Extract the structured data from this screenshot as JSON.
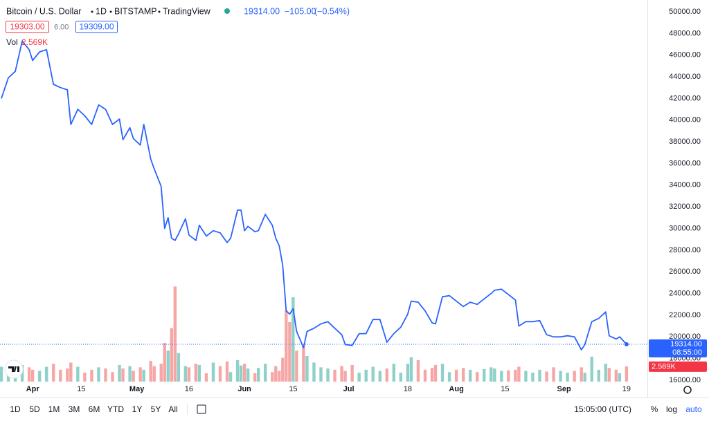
{
  "chart_data": {
    "type": "line",
    "header": {
      "title": "Bitcoin / U.S. Dollar",
      "interval": "1D",
      "exchange": "BITSTAMP",
      "source": "TradingView",
      "last": "19314.00",
      "change": "−105.00",
      "change_pct": "(−0.54%)",
      "bid": "19303.00",
      "spread": "6.00",
      "ask": "19309.00",
      "volume_label": "Vol",
      "volume_last": "2.569K"
    },
    "price_label": {
      "value": "19314.00",
      "countdown": "08:55:00"
    },
    "x": [
      "03-23",
      "03-25",
      "03-27",
      "03-29",
      "03-31",
      "04-01",
      "04-03",
      "04-05",
      "04-07",
      "04-09",
      "04-11",
      "04-12",
      "04-14",
      "04-16",
      "04-18",
      "04-20",
      "04-22",
      "04-24",
      "04-26",
      "04-27",
      "04-29",
      "04-30",
      "05-02",
      "05-03",
      "05-05",
      "05-06",
      "05-08",
      "05-09",
      "05-10",
      "05-11",
      "05-12",
      "05-13",
      "05-15",
      "05-16",
      "05-18",
      "05-19",
      "05-21",
      "05-23",
      "05-25",
      "05-27",
      "05-28",
      "05-30",
      "05-31",
      "06-01",
      "06-02",
      "06-04",
      "06-05",
      "06-07",
      "06-09",
      "06-10",
      "06-11",
      "06-12",
      "06-13",
      "06-14",
      "06-15",
      "06-16",
      "06-18",
      "06-19",
      "06-21",
      "06-23",
      "06-25",
      "06-27",
      "06-29",
      "06-30",
      "07-02",
      "07-04",
      "07-06",
      "07-08",
      "07-10",
      "07-12",
      "07-14",
      "07-16",
      "07-18",
      "07-19",
      "07-21",
      "07-23",
      "07-25",
      "07-26",
      "07-28",
      "07-30",
      "08-01",
      "08-03",
      "08-05",
      "08-07",
      "08-09",
      "08-11",
      "08-12",
      "08-14",
      "08-16",
      "08-18",
      "08-19",
      "08-21",
      "08-23",
      "08-25",
      "08-27",
      "08-29",
      "08-31",
      "09-02",
      "09-04",
      "09-06",
      "09-07",
      "09-09",
      "09-11",
      "09-13",
      "09-14",
      "09-16",
      "09-17",
      "09-19"
    ],
    "values": [
      42000,
      43900,
      44500,
      47300,
      46500,
      45500,
      46300,
      46500,
      43300,
      43000,
      42800,
      39600,
      41000,
      40400,
      39600,
      41400,
      41000,
      39600,
      40100,
      38200,
      39300,
      38300,
      37700,
      39600,
      36400,
      35500,
      33900,
      30000,
      31000,
      29100,
      28900,
      29500,
      30900,
      29400,
      28900,
      30300,
      29300,
      29800,
      29600,
      28700,
      29100,
      31700,
      31700,
      29800,
      30200,
      29700,
      29800,
      31300,
      30300,
      29100,
      28400,
      26600,
      22400,
      22100,
      22600,
      20500,
      19000,
      20500,
      20800,
      21200,
      21400,
      20800,
      20200,
      19300,
      19200,
      20300,
      20300,
      21600,
      21600,
      19500,
      20300,
      20900,
      22100,
      23300,
      23200,
      22400,
      21300,
      21200,
      23700,
      23800,
      23300,
      22800,
      23200,
      23000,
      23500,
      24000,
      24300,
      24400,
      23900,
      23400,
      21000,
      21400,
      21400,
      21500,
      20200,
      20000,
      20000,
      20100,
      20000,
      18800,
      19300,
      21400,
      21700,
      22300,
      20100,
      19800,
      20000,
      19314
    ],
    "color": "#2962ff",
    "volume": {
      "values": [
        2.5,
        2.2,
        2.0,
        2.8,
        2.4,
        2.0,
        1.8,
        2.5,
        3.0,
        2.0,
        2.2,
        3.2,
        2.5,
        1.5,
        2.0,
        2.4,
        2.2,
        1.6,
        2.8,
        2.2,
        2.6,
        1.8,
        2.4,
        2.0,
        3.5,
        2.6,
        3.0,
        6.5,
        5.2,
        9.0,
        16.0,
        4.8,
        2.6,
        2.4,
        3.0,
        2.8,
        1.4,
        3.2,
        2.6,
        3.4,
        1.6,
        3.6,
        2.7,
        3.0,
        2.2,
        1.4,
        2.3,
        3.0,
        1.6,
        2.6,
        1.8,
        4.0,
        12.0,
        10.0,
        14.2,
        5.2,
        6.0,
        4.3,
        3.2,
        2.4,
        2.2,
        2.0,
        2.6,
        1.8,
        2.8,
        1.5,
        2.0,
        2.5,
        1.8,
        2.2,
        3.0,
        1.5,
        3.0,
        4.1,
        3.6,
        2.0,
        2.3,
        2.8,
        3.0,
        1.6,
        2.0,
        2.3,
        2.0,
        1.6,
        2.1,
        2.4,
        2.2,
        1.8,
        1.9,
        2.0,
        2.5,
        1.8,
        1.5,
        2.0,
        1.7,
        2.4,
        1.8,
        1.5,
        1.8,
        2.4,
        1.5,
        4.2,
        2.0,
        3.0,
        2.3,
        2.0,
        1.4,
        2.569
      ],
      "ylim": [
        0,
        20
      ],
      "up_color": "#8fd1c9",
      "down_color": "#f7a6a6"
    },
    "xlim": [
      "03-23",
      "09-25"
    ],
    "xticks": [
      {
        "value": "04-01",
        "label": "Apr"
      },
      {
        "value": "04-15",
        "label": "15"
      },
      {
        "value": "05-01",
        "label": "May"
      },
      {
        "value": "05-16",
        "label": "16"
      },
      {
        "value": "06-01",
        "label": "Jun"
      },
      {
        "value": "06-15",
        "label": "15"
      },
      {
        "value": "07-01",
        "label": "Jul"
      },
      {
        "value": "07-18",
        "label": "18"
      },
      {
        "value": "08-01",
        "label": "Aug"
      },
      {
        "value": "08-15",
        "label": "15"
      },
      {
        "value": "09-01",
        "label": "Sep"
      },
      {
        "value": "09-19",
        "label": "19"
      }
    ],
    "ylim": [
      16000,
      50000
    ],
    "yticks": [
      {
        "value": 16000,
        "label": "16000.00"
      },
      {
        "value": 18000,
        "label": "18000.00"
      },
      {
        "value": 20000,
        "label": "20000.00"
      },
      {
        "value": 22000,
        "label": "22000.00"
      },
      {
        "value": 24000,
        "label": "24000.00"
      },
      {
        "value": 26000,
        "label": "26000.00"
      },
      {
        "value": 28000,
        "label": "28000.00"
      },
      {
        "value": 30000,
        "label": "30000.00"
      },
      {
        "value": 32000,
        "label": "32000.00"
      },
      {
        "value": 34000,
        "label": "34000.00"
      },
      {
        "value": 36000,
        "label": "36000.00"
      },
      {
        "value": 38000,
        "label": "38000.00"
      },
      {
        "value": 40000,
        "label": "40000.00"
      },
      {
        "value": 42000,
        "label": "42000.00"
      },
      {
        "value": 44000,
        "label": "44000.00"
      },
      {
        "value": 46000,
        "label": "46000.00"
      },
      {
        "value": 48000,
        "label": "48000.00"
      },
      {
        "value": 50000,
        "label": "50000.00"
      }
    ],
    "grid": false,
    "toolbar": {
      "ranges": [
        "1D",
        "5D",
        "1M",
        "3M",
        "6M",
        "YTD",
        "1Y",
        "5Y",
        "All"
      ],
      "time": "15:05:00 (UTC)",
      "options": [
        "%",
        "log",
        "auto"
      ]
    }
  }
}
